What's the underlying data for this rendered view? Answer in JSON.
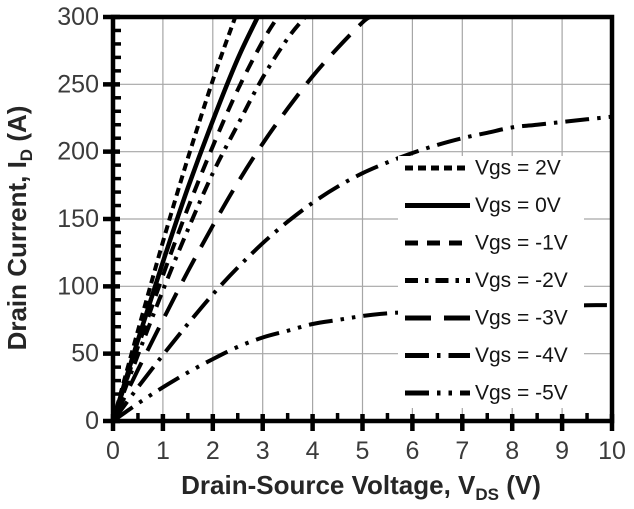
{
  "chart_data": {
    "type": "line",
    "title": "",
    "xlabel_parts": [
      {
        "t": "Drain-Source Voltage, V"
      },
      {
        "t": "DS",
        "sub": true
      },
      {
        "t": " (V)"
      }
    ],
    "ylabel_parts": [
      {
        "t": "Drain Current, I"
      },
      {
        "t": "D",
        "sub": true
      },
      {
        "t": " (A)"
      }
    ],
    "xlim": [
      0,
      10
    ],
    "ylim": [
      0,
      300
    ],
    "x_ticks": [
      0,
      1,
      2,
      3,
      4,
      5,
      6,
      7,
      8,
      9,
      10
    ],
    "y_ticks": [
      0,
      50,
      100,
      150,
      200,
      250,
      300
    ],
    "x_minor_step": 0.5,
    "y_minor_step": 10,
    "grid": true,
    "legend_position": "inside-right",
    "series": [
      {
        "name": "Vgs = 2V",
        "dash": "8 5",
        "width": 4,
        "points": [
          [
            0,
            0
          ],
          [
            0.5,
            67
          ],
          [
            1,
            133
          ],
          [
            1.5,
            195
          ],
          [
            2,
            253
          ],
          [
            2.45,
            300
          ]
        ]
      },
      {
        "name": "Vgs = 0V",
        "dash": "",
        "width": 4.5,
        "points": [
          [
            0,
            0
          ],
          [
            0.5,
            60
          ],
          [
            1,
            118
          ],
          [
            1.5,
            173
          ],
          [
            2,
            223
          ],
          [
            2.5,
            269
          ],
          [
            2.9,
            300
          ]
        ]
      },
      {
        "name": "Vgs = -1V",
        "dash": "13 9",
        "width": 4,
        "points": [
          [
            0,
            0
          ],
          [
            0.5,
            55
          ],
          [
            1,
            108
          ],
          [
            1.5,
            158
          ],
          [
            2,
            204
          ],
          [
            2.5,
            246
          ],
          [
            3,
            282
          ],
          [
            3.3,
            300
          ]
        ]
      },
      {
        "name": "Vgs = -2V",
        "dash": "13 7 3.5 7",
        "width": 4,
        "points": [
          [
            0,
            0
          ],
          [
            0.5,
            49
          ],
          [
            1,
            97
          ],
          [
            1.5,
            142
          ],
          [
            2,
            184
          ],
          [
            2.5,
            220
          ],
          [
            3,
            255
          ],
          [
            3.5,
            284
          ],
          [
            3.85,
            300
          ]
        ]
      },
      {
        "name": "Vgs = -3V",
        "dash": "26 13",
        "width": 4,
        "points": [
          [
            0,
            0
          ],
          [
            0.5,
            38
          ],
          [
            1,
            75
          ],
          [
            1.5,
            111
          ],
          [
            2,
            145
          ],
          [
            2.5,
            177
          ],
          [
            3,
            206
          ],
          [
            3.5,
            232
          ],
          [
            4,
            256
          ],
          [
            4.5,
            277
          ],
          [
            5,
            296
          ],
          [
            5.15,
            300
          ]
        ]
      },
      {
        "name": "Vgs = -4V",
        "dash": "24 8 3.5 8",
        "width": 4,
        "points": [
          [
            0,
            0
          ],
          [
            0.5,
            25
          ],
          [
            1,
            49
          ],
          [
            1.5,
            72
          ],
          [
            2,
            94
          ],
          [
            2.5,
            114
          ],
          [
            3,
            132
          ],
          [
            3.5,
            148
          ],
          [
            4,
            162
          ],
          [
            4.5,
            174
          ],
          [
            5,
            184
          ],
          [
            5.5,
            192
          ],
          [
            6,
            199
          ],
          [
            6.5,
            205
          ],
          [
            7,
            210
          ],
          [
            7.5,
            214
          ],
          [
            8,
            218
          ],
          [
            8.5,
            220
          ],
          [
            9,
            222
          ],
          [
            9.5,
            224
          ],
          [
            10,
            226
          ]
        ]
      },
      {
        "name": "Vgs = -5V",
        "dash": "24 8 3.5 8 3.5 8",
        "width": 4,
        "points": [
          [
            0,
            0
          ],
          [
            0.5,
            13
          ],
          [
            1,
            25
          ],
          [
            1.5,
            36
          ],
          [
            2,
            46
          ],
          [
            2.5,
            55
          ],
          [
            3,
            62
          ],
          [
            3.5,
            67
          ],
          [
            4,
            72
          ],
          [
            4.5,
            75
          ],
          [
            5,
            78
          ],
          [
            5.5,
            80
          ],
          [
            6,
            81
          ],
          [
            6.5,
            82
          ],
          [
            7,
            83
          ],
          [
            7.5,
            84
          ],
          [
            8,
            85
          ],
          [
            8.5,
            85
          ],
          [
            9,
            85
          ],
          [
            9.5,
            86
          ],
          [
            10,
            86
          ]
        ]
      }
    ],
    "colors": {
      "line": "#000000",
      "grid": "#a6a6a6",
      "frame": "#000000",
      "tick": "#000000",
      "tick_label": "#3b3b3b",
      "axis_title": "#262626",
      "legend_text": "#141414",
      "background": "#ffffff"
    }
  }
}
